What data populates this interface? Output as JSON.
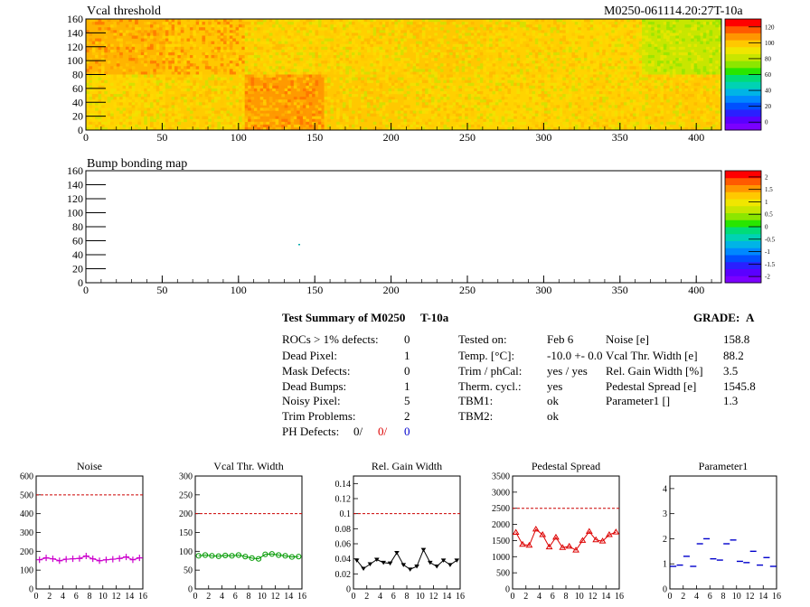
{
  "header": {
    "map1_title": "Vcal threshold",
    "module_id": "M0250-061114.20:27T-10a",
    "map2_title": "Bump bonding map"
  },
  "map1": {
    "x_ticks": [
      "0",
      "50",
      "100",
      "150",
      "200",
      "250",
      "300",
      "350",
      "400"
    ],
    "y_ticks": [
      "0",
      "20",
      "40",
      "60",
      "80",
      "100",
      "120",
      "140",
      "160"
    ],
    "colorbar_ticks": [
      "0",
      "20",
      "40",
      "60",
      "80",
      "100",
      "120"
    ]
  },
  "map2": {
    "x_ticks": [
      "0",
      "50",
      "100",
      "150",
      "200",
      "250",
      "300",
      "350",
      "400"
    ],
    "y_ticks": [
      "0",
      "20",
      "40",
      "60",
      "80",
      "100",
      "120",
      "140",
      "160"
    ],
    "colorbar_ticks": [
      "-2",
      "-1.5",
      "-1",
      "-0.5",
      "0",
      "0.5",
      "1",
      "1.5",
      "2"
    ]
  },
  "summary": {
    "title": "Test Summary of M0250",
    "test_id": "T-10a",
    "grade_label": "GRADE:",
    "grade": "A",
    "rocs_label": "ROCs > 1% defects:",
    "rocs_value": "0",
    "dead_pixel_label": "Dead Pixel:",
    "dead_pixel_value": "1",
    "mask_label": "Mask Defects:",
    "mask_value": "0",
    "dead_bumps_label": "Dead Bumps:",
    "dead_bumps_value": "1",
    "noisy_label": "Noisy Pixel:",
    "noisy_value": "5",
    "trim_label": "Trim Problems:",
    "trim_value": "2",
    "ph_label": "PH Defects:",
    "ph_v1": "0/",
    "ph_v2": "0/",
    "ph_v3": "0",
    "tested_label": "Tested on:",
    "tested_value": "Feb 6",
    "temp_label": "Temp. [°C]:",
    "temp_value": "-10.0 +- 0.0",
    "trim_ph_label": "Trim / phCal:",
    "trim_ph_value": "yes / yes",
    "therm_label": "Therm. cycl.:",
    "therm_value": "yes",
    "tbm1_label": "TBM1:",
    "tbm1_value": "ok",
    "tbm2_label": "TBM2:",
    "tbm2_value": "ok",
    "noise_label": "Noise [e]",
    "noise_value": "158.8",
    "vcal_label": "Vcal Thr. Width [e]",
    "vcal_value": "88.2",
    "relgain_label": "Rel. Gain Width [%]",
    "relgain_value": "3.5",
    "ped_label": "Pedestal Spread [e]",
    "ped_value": "1545.8",
    "par1_label": "Parameter1 []",
    "par1_value": "1.3"
  },
  "chart_data": [
    {
      "type": "line",
      "title": "Noise",
      "color": "#cc00cc",
      "marker": "cross",
      "x": [
        0,
        1,
        2,
        3,
        4,
        5,
        6,
        7,
        8,
        9,
        10,
        11,
        12,
        13,
        14,
        15
      ],
      "y": [
        155,
        165,
        160,
        150,
        158,
        160,
        162,
        175,
        160,
        150,
        155,
        158,
        162,
        170,
        155,
        165
      ],
      "ylim": [
        0,
        600
      ],
      "yticks": [
        "0",
        "100",
        "200",
        "300",
        "400",
        "500",
        "600"
      ],
      "threshold": 500,
      "xticks": [
        "0",
        "2",
        "4",
        "6",
        "8",
        "10",
        "12",
        "14",
        "16"
      ]
    },
    {
      "type": "line",
      "title": "Vcal Thr. Width",
      "color": "#009900",
      "marker": "circle",
      "x": [
        0,
        1,
        2,
        3,
        4,
        5,
        6,
        7,
        8,
        9,
        10,
        11,
        12,
        13,
        14,
        15
      ],
      "y": [
        88,
        90,
        88,
        87,
        89,
        88,
        90,
        86,
        82,
        80,
        92,
        93,
        90,
        88,
        85,
        86
      ],
      "ylim": [
        0,
        300
      ],
      "yticks": [
        "0",
        "50",
        "100",
        "150",
        "200",
        "250",
        "300"
      ],
      "threshold": 200,
      "xticks": [
        "0",
        "2",
        "4",
        "6",
        "8",
        "10",
        "12",
        "14",
        "16"
      ]
    },
    {
      "type": "line",
      "title": "Rel. Gain Width",
      "color": "#000000",
      "marker": "triangle-down",
      "x": [
        0,
        1,
        2,
        3,
        4,
        5,
        6,
        7,
        8,
        9,
        10,
        11,
        12,
        13,
        14,
        15
      ],
      "y": [
        0.038,
        0.027,
        0.033,
        0.039,
        0.035,
        0.034,
        0.048,
        0.032,
        0.026,
        0.03,
        0.052,
        0.035,
        0.03,
        0.038,
        0.032,
        0.038
      ],
      "ylim": [
        0,
        0.15
      ],
      "yticks": [
        "0",
        "0.02",
        "0.04",
        "0.06",
        "0.08",
        "0.1",
        "0.12",
        "0.14"
      ],
      "threshold": 0.1,
      "xticks": [
        "0",
        "2",
        "4",
        "6",
        "8",
        "10",
        "12",
        "14",
        "16"
      ]
    },
    {
      "type": "line",
      "title": "Pedestal Spread",
      "color": "#dd0000",
      "marker": "triangle-up",
      "x": [
        0,
        1,
        2,
        3,
        4,
        5,
        6,
        7,
        8,
        9,
        10,
        11,
        12,
        13,
        14,
        15
      ],
      "y": [
        1750,
        1380,
        1350,
        1850,
        1680,
        1300,
        1600,
        1280,
        1320,
        1200,
        1500,
        1780,
        1520,
        1480,
        1680,
        1760
      ],
      "ylim": [
        0,
        3500
      ],
      "yticks": [
        "0",
        "500",
        "1000",
        "1500",
        "2000",
        "2500",
        "3000",
        "3500"
      ],
      "threshold": 2500,
      "xticks": [
        "0",
        "2",
        "4",
        "6",
        "8",
        "10",
        "12",
        "14",
        "16"
      ]
    },
    {
      "type": "scatter",
      "title": "Parameter1",
      "color": "#0000cc",
      "marker": "hbar",
      "x": [
        0,
        1,
        2,
        3,
        4,
        5,
        6,
        7,
        8,
        9,
        10,
        11,
        12,
        13,
        14,
        15
      ],
      "y": [
        0.9,
        0.95,
        1.3,
        0.9,
        1.8,
        2.0,
        1.2,
        1.15,
        1.8,
        1.95,
        1.1,
        1.05,
        1.5,
        0.95,
        1.25,
        0.9
      ],
      "ylim": [
        0,
        4.5
      ],
      "yticks": [
        "0",
        "1",
        "2",
        "3",
        "4"
      ],
      "threshold": null,
      "xticks": [
        "0",
        "2",
        "4",
        "6",
        "8",
        "10",
        "12",
        "14",
        "16"
      ]
    }
  ],
  "colors": {
    "dashed_line": "#cc0000",
    "ph_v2": "#dd0000",
    "ph_v3": "#0000cc"
  }
}
